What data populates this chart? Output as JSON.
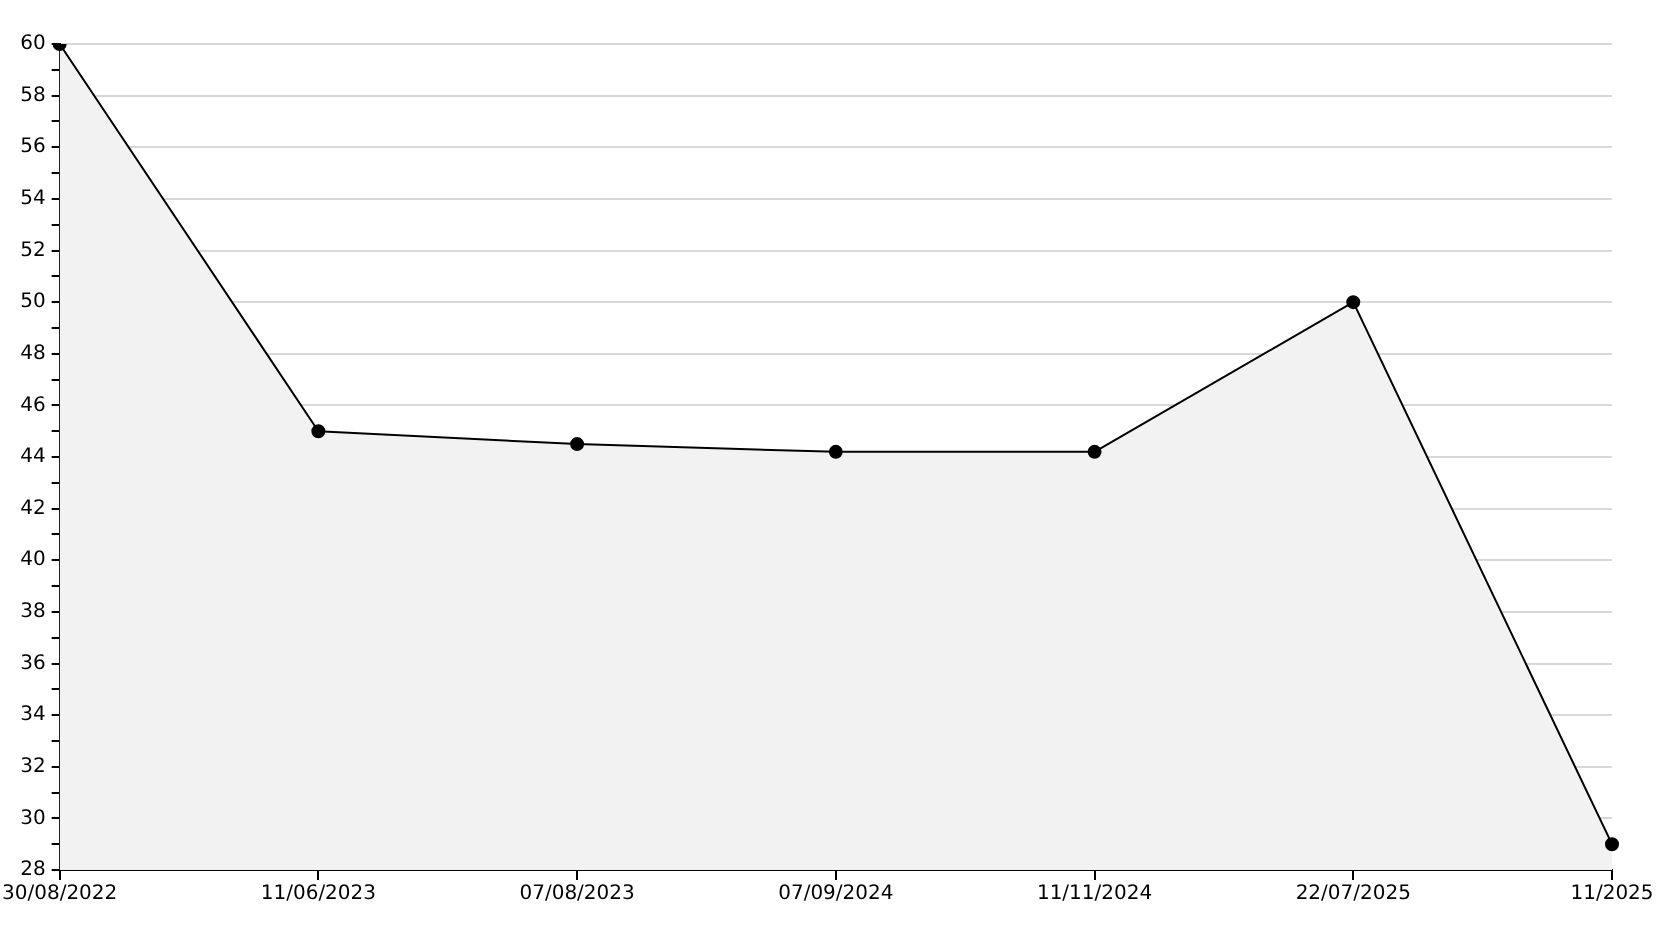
{
  "chart_data": {
    "type": "area",
    "categories": [
      "30/08/2022",
      "11/06/2023",
      "07/08/2023",
      "07/09/2024",
      "11/11/2024",
      "22/07/2025",
      "11/2025"
    ],
    "series": [
      {
        "color": "#000000",
        "values": [
          60,
          45,
          44.5,
          44.2,
          44.2,
          50,
          29
        ]
      }
    ],
    "ylim": [
      28,
      60
    ],
    "yticks": [
      28,
      {
        "value": 29,
        "label": null
      },
      30,
      {
        "value": 31,
        "label": null
      },
      32,
      {
        "value": 33,
        "label": null
      },
      34,
      {
        "value": 35,
        "label": null
      },
      36,
      {
        "value": 37,
        "label": null
      },
      38,
      {
        "value": 39,
        "label": null
      },
      40,
      {
        "value": 41,
        "label": null
      },
      42,
      {
        "value": 43,
        "label": null
      },
      44,
      {
        "value": 45,
        "label": null
      },
      46,
      {
        "value": 47,
        "label": null
      },
      48,
      {
        "value": 49,
        "label": null
      },
      50,
      {
        "value": 51,
        "label": null
      },
      52,
      {
        "value": 53,
        "label": null
      },
      54,
      {
        "value": 55,
        "label": null
      },
      56,
      {
        "value": 57,
        "label": null
      },
      58,
      {
        "value": 59,
        "label": null
      },
      60
    ],
    "grid": "y",
    "marker": "circle",
    "line_style": "solid",
    "legend": false
  }
}
